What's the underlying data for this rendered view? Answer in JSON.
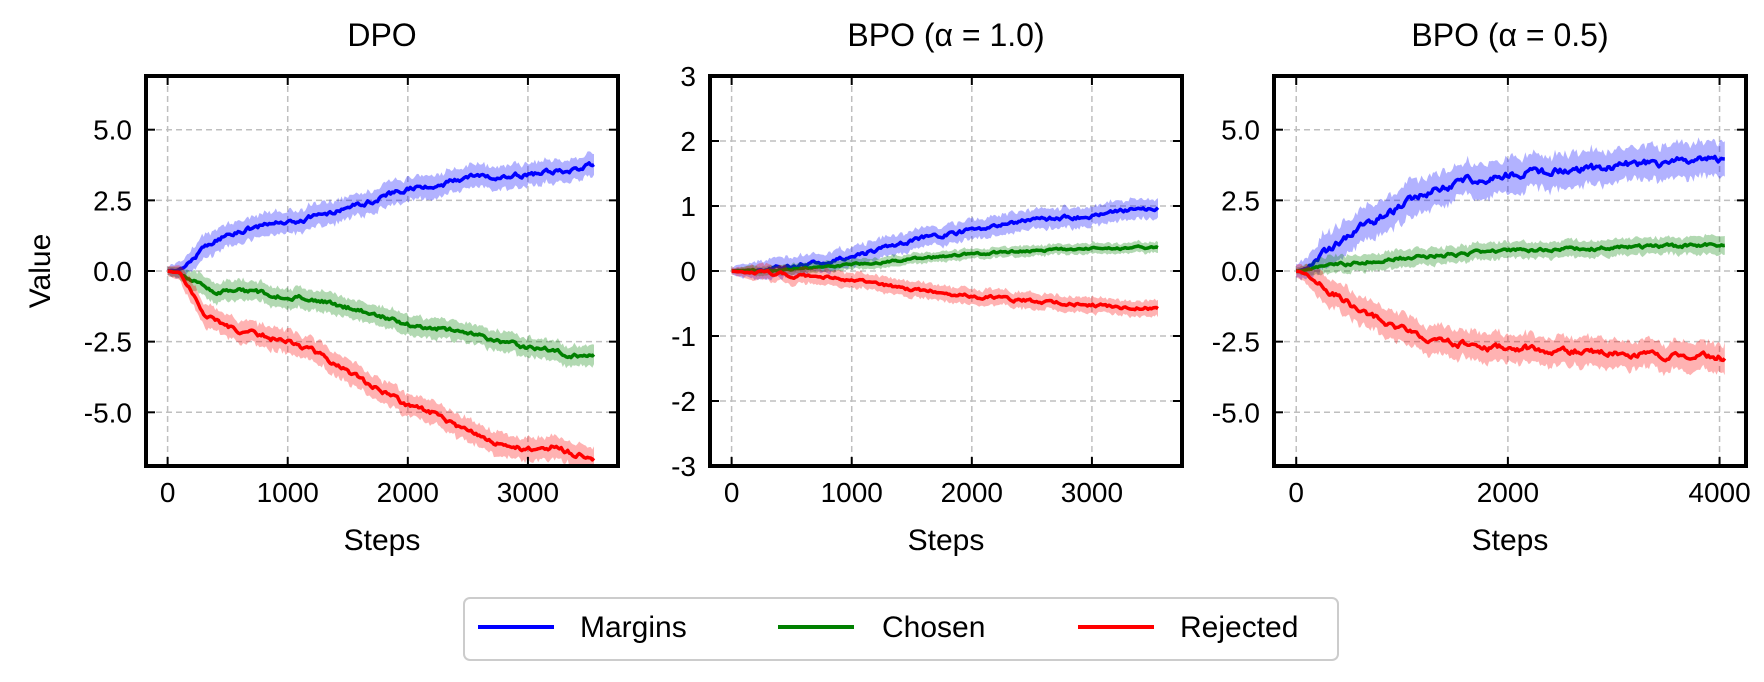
{
  "figure": {
    "ylabel": "Value",
    "legend": {
      "placement": "bottom-center",
      "entries": [
        {
          "label": "Margins",
          "color": "#0000ff"
        },
        {
          "label": "Chosen",
          "color": "#008000"
        },
        {
          "label": "Rejected",
          "color": "#ff0000"
        }
      ]
    }
  },
  "chart_data": [
    {
      "type": "line",
      "title": "DPO",
      "xlabel": "Steps",
      "ylabel": "Value",
      "xlim": [
        -180,
        3750
      ],
      "ylim": [
        -6.9,
        6.9
      ],
      "xticks": [
        0,
        1000,
        2000,
        3000
      ],
      "xtick_labels": [
        "0",
        "1000",
        "2000",
        "3000"
      ],
      "yticks": [
        -5.0,
        -2.5,
        0.0,
        2.5,
        5.0
      ],
      "ytick_labels": [
        "-5.0",
        "-2.5",
        "0.0",
        "2.5",
        "5.0"
      ],
      "grid": true,
      "series": [
        {
          "name": "Margins",
          "color": "#0000ff",
          "band": 0.4,
          "x": [
            0,
            100,
            200,
            300,
            400,
            500,
            700,
            900,
            1100,
            1300,
            1500,
            1700,
            1900,
            2100,
            2300,
            2500,
            2700,
            2900,
            3100,
            3300,
            3500,
            3550
          ],
          "y": [
            0,
            0.05,
            0.4,
            0.8,
            1.1,
            1.3,
            1.5,
            1.7,
            1.8,
            2.0,
            2.3,
            2.5,
            2.8,
            2.95,
            3.1,
            3.3,
            3.35,
            3.4,
            3.45,
            3.55,
            3.7,
            3.8
          ]
        },
        {
          "name": "Chosen",
          "color": "#008000",
          "band": 0.35,
          "x": [
            0,
            100,
            200,
            300,
            400,
            600,
            800,
            1000,
            1200,
            1400,
            1600,
            1800,
            2000,
            2200,
            2400,
            2600,
            2800,
            3000,
            3200,
            3400,
            3550
          ],
          "y": [
            0,
            -0.05,
            -0.3,
            -0.6,
            -0.7,
            -0.7,
            -0.8,
            -0.9,
            -1.0,
            -1.2,
            -1.4,
            -1.6,
            -1.9,
            -2.0,
            -2.1,
            -2.3,
            -2.5,
            -2.7,
            -2.8,
            -3.0,
            -2.9
          ]
        },
        {
          "name": "Rejected",
          "color": "#ff0000",
          "band": 0.4,
          "x": [
            0,
            100,
            200,
            300,
            400,
            600,
            800,
            1000,
            1200,
            1400,
            1600,
            1800,
            2000,
            2200,
            2400,
            2600,
            2800,
            3000,
            3200,
            3400,
            3550
          ],
          "y": [
            0,
            -0.1,
            -0.7,
            -1.4,
            -1.8,
            -2.1,
            -2.3,
            -2.5,
            -2.8,
            -3.3,
            -3.8,
            -4.3,
            -4.8,
            -5.0,
            -5.5,
            -5.8,
            -6.2,
            -6.3,
            -6.2,
            -6.5,
            -6.6
          ]
        }
      ]
    },
    {
      "type": "line",
      "title": "BPO (α = 1.0)",
      "xlabel": "Steps",
      "ylabel": "",
      "xlim": [
        -180,
        3750
      ],
      "ylim": [
        -3,
        3
      ],
      "xticks": [
        0,
        1000,
        2000,
        3000
      ],
      "xtick_labels": [
        "0",
        "1000",
        "2000",
        "3000"
      ],
      "yticks": [
        -3,
        -2,
        -1,
        0,
        1,
        2,
        3
      ],
      "ytick_labels": [
        "-3",
        "-2",
        "-1",
        "0",
        "1",
        "2",
        "3"
      ],
      "grid": true,
      "series": [
        {
          "name": "Margins",
          "color": "#0000ff",
          "band": 0.15,
          "x": [
            0,
            200,
            400,
            600,
            800,
            1000,
            1200,
            1400,
            1600,
            1800,
            2000,
            2200,
            2400,
            2600,
            2800,
            3000,
            3200,
            3400,
            3550
          ],
          "y": [
            0,
            0.02,
            0.06,
            0.1,
            0.15,
            0.22,
            0.32,
            0.42,
            0.5,
            0.58,
            0.62,
            0.7,
            0.75,
            0.8,
            0.82,
            0.85,
            0.9,
            0.95,
            0.95
          ]
        },
        {
          "name": "Chosen",
          "color": "#008000",
          "band": 0.08,
          "x": [
            0,
            200,
            400,
            600,
            800,
            1000,
            1200,
            1400,
            1600,
            1800,
            2000,
            2200,
            2400,
            2600,
            2800,
            3000,
            3200,
            3400,
            3550
          ],
          "y": [
            0,
            0.01,
            0.03,
            0.05,
            0.08,
            0.1,
            0.13,
            0.17,
            0.2,
            0.23,
            0.26,
            0.28,
            0.3,
            0.32,
            0.33,
            0.34,
            0.35,
            0.36,
            0.37
          ]
        },
        {
          "name": "Rejected",
          "color": "#ff0000",
          "band": 0.12,
          "x": [
            0,
            200,
            400,
            600,
            800,
            1000,
            1200,
            1400,
            1600,
            1800,
            2000,
            2200,
            2400,
            2600,
            2800,
            3000,
            3200,
            3400,
            3550
          ],
          "y": [
            0,
            -0.02,
            -0.05,
            -0.08,
            -0.1,
            -0.15,
            -0.2,
            -0.25,
            -0.3,
            -0.35,
            -0.38,
            -0.42,
            -0.45,
            -0.48,
            -0.5,
            -0.52,
            -0.55,
            -0.57,
            -0.58
          ]
        }
      ]
    },
    {
      "type": "line",
      "title": "BPO (α = 0.5)",
      "xlabel": "Steps",
      "ylabel": "",
      "xlim": [
        -210,
        4250
      ],
      "ylim": [
        -6.9,
        6.9
      ],
      "xticks": [
        0,
        2000,
        4000
      ],
      "xtick_labels": [
        "0",
        "2000",
        "4000"
      ],
      "yticks": [
        -5.0,
        -2.5,
        0.0,
        2.5,
        5.0
      ],
      "ytick_labels": [
        "-5.0",
        "-2.5",
        "0.0",
        "2.5",
        "5.0"
      ],
      "grid": true,
      "series": [
        {
          "name": "Margins",
          "color": "#0000ff",
          "band": 0.6,
          "x": [
            0,
            100,
            200,
            400,
            600,
            800,
            1000,
            1200,
            1400,
            1600,
            1800,
            2000,
            2200,
            2400,
            2600,
            2800,
            3000,
            3200,
            3400,
            3600,
            3800,
            4050
          ],
          "y": [
            0,
            0.1,
            0.4,
            1.0,
            1.5,
            1.9,
            2.3,
            2.7,
            3.0,
            3.2,
            3.3,
            3.4,
            3.5,
            3.5,
            3.6,
            3.6,
            3.7,
            3.8,
            3.8,
            3.9,
            3.9,
            4.0
          ]
        },
        {
          "name": "Chosen",
          "color": "#008000",
          "band": 0.3,
          "x": [
            0,
            200,
            400,
            600,
            800,
            1000,
            1200,
            1400,
            1600,
            1800,
            2000,
            2200,
            2400,
            2600,
            2800,
            3000,
            3200,
            3400,
            3600,
            3800,
            4050
          ],
          "y": [
            0,
            0.1,
            0.2,
            0.3,
            0.4,
            0.45,
            0.5,
            0.55,
            0.6,
            0.65,
            0.7,
            0.72,
            0.75,
            0.77,
            0.8,
            0.82,
            0.85,
            0.87,
            0.88,
            0.9,
            0.9
          ]
        },
        {
          "name": "Rejected",
          "color": "#ff0000",
          "band": 0.5,
          "x": [
            0,
            100,
            200,
            400,
            600,
            800,
            1000,
            1200,
            1400,
            1600,
            1800,
            2000,
            2200,
            2400,
            2600,
            2800,
            3000,
            3200,
            3400,
            3600,
            3800,
            4050
          ],
          "y": [
            0,
            -0.1,
            -0.4,
            -0.9,
            -1.4,
            -1.7,
            -2.0,
            -2.3,
            -2.5,
            -2.6,
            -2.7,
            -2.7,
            -2.75,
            -2.8,
            -2.8,
            -2.85,
            -2.9,
            -2.9,
            -2.95,
            -3.0,
            -3.0,
            -3.05
          ]
        }
      ]
    }
  ]
}
